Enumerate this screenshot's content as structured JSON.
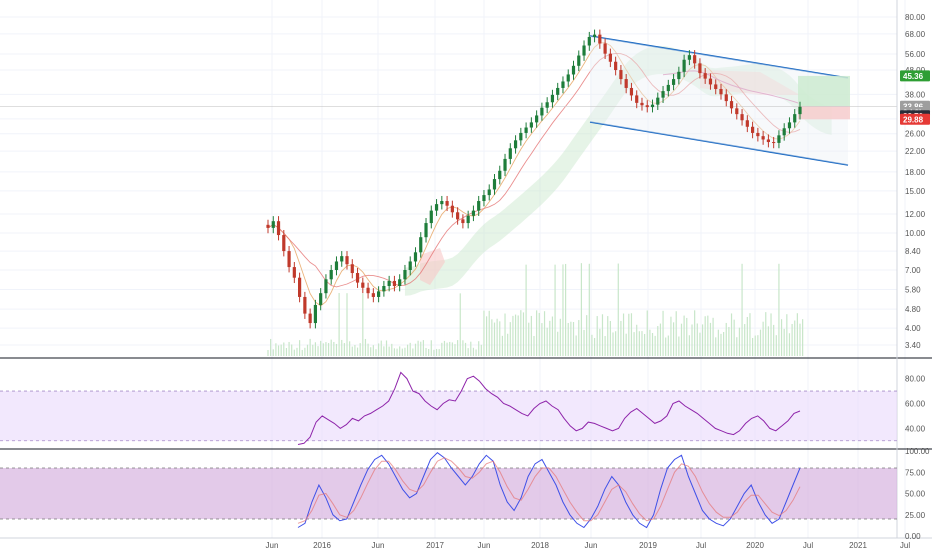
{
  "colors": {
    "up": "#26a69a",
    "down": "#ef5350",
    "candle_up": "#1e7d3a",
    "candle_down": "#c0392b",
    "channel": "#1565c0",
    "rsi_line": "#8e24aa",
    "rsi_band": "#e9d8fb",
    "stoch_k": "#3f51e8",
    "stoch_d": "#e57373",
    "stoch_band": "#d7b4e0",
    "volume": "#c8e6c9",
    "grid": "#f0f3fa",
    "sma_orange": "#e6a15c",
    "sma_red": "#e57373",
    "sma_pink": "#d16ba5",
    "cloud_green": "#c8e6c9",
    "cloud_red": "#f8c8c8",
    "badge_green": "#2e9e34",
    "badge_gray": "#9e9e9e",
    "badge_dark": "#2a2e39",
    "badge_red": "#e53935"
  },
  "price_axis": {
    "ticks": [
      "80.00",
      "68.00",
      "56.00",
      "48.00",
      "38.00",
      "30.00",
      "26.00",
      "22.00",
      "18.00",
      "15.00",
      "12.00",
      "10.00",
      "8.40",
      "7.00",
      "5.80",
      "4.80",
      "4.00",
      "3.40"
    ],
    "badges": [
      {
        "label": "45.36",
        "value": 45.36,
        "color": "badge_green"
      },
      {
        "label": "33.86",
        "value": 33.86,
        "color": "badge_gray"
      },
      {
        "label": "3d 8h",
        "value": 31.9,
        "color": "badge_gray"
      },
      {
        "label": "33.70",
        "value": 30.9,
        "color": "badge_dark"
      },
      {
        "label": "29.88",
        "value": 29.88,
        "color": "badge_red"
      }
    ]
  },
  "rsi_axis": {
    "ticks": [
      "80.00",
      "60.00",
      "40.00"
    ]
  },
  "stoch_axis": {
    "ticks": [
      "100.00",
      "75.00",
      "50.00",
      "25.00",
      "0.00"
    ]
  },
  "time_axis": {
    "ticks": [
      "Jun",
      "2016",
      "Jun",
      "2017",
      "Jun",
      "2018",
      "Jun",
      "2019",
      "Jul",
      "2020",
      "Jul",
      "2021",
      "Jul"
    ]
  },
  "chart_data": [
    {
      "type": "candlestick",
      "scale": "log",
      "x_range": [
        "2015-06",
        "2021-07"
      ],
      "ylim": [
        3.4,
        80
      ],
      "series": [
        {
          "values": [
            10.5,
            11.2,
            9.8,
            8.4,
            7.2,
            6.5,
            5.4,
            4.6,
            4.2,
            5.0,
            5.6,
            6.4,
            7.0,
            7.6,
            8.0,
            7.4,
            6.8,
            6.2,
            5.9,
            5.6,
            5.4,
            5.7,
            6.0,
            6.3,
            6.0,
            6.4,
            7.0,
            7.6,
            8.3,
            9.6,
            11.0,
            12.4,
            13.2,
            13.6,
            13.0,
            12.2,
            11.4,
            11.0,
            11.8,
            12.4,
            13.6,
            14.4,
            15.2,
            16.8,
            18.2,
            20.4,
            22.6,
            24.4,
            26.2,
            27.6,
            29.0,
            31.0,
            33.4,
            35.2,
            37.8,
            40.4,
            43.0,
            46.0,
            50.0,
            55.2,
            60.8,
            66.0,
            67.5,
            62.0,
            56.2,
            52.0,
            48.0,
            44.0,
            40.4,
            37.6,
            35.0,
            34.2,
            33.6,
            34.4,
            36.8,
            39.2,
            41.6,
            44.0,
            47.2,
            53.0,
            55.4,
            51.2,
            46.6,
            44.2,
            41.8,
            40.0,
            38.0,
            35.6,
            33.2,
            31.4,
            29.6,
            27.8,
            26.2,
            25.4,
            24.6,
            24.0,
            23.8,
            25.6,
            27.4,
            29.0,
            31.4,
            33.7
          ]
        }
      ],
      "channel": {
        "upper": [
          [
            "2018-06",
            66.0
          ],
          [
            "2020-12",
            48.0
          ]
        ],
        "lower": [
          [
            "2018-06",
            29.5
          ],
          [
            "2020-12",
            20.0
          ]
        ]
      },
      "trade_box": {
        "entry": 33.86,
        "target": 45.36,
        "stop": 29.88
      }
    },
    {
      "type": "line",
      "name": "",
      "ylim": [
        25,
        95
      ],
      "band": [
        30,
        70
      ],
      "values": [
        27,
        28,
        33,
        45,
        50,
        47,
        44,
        40,
        43,
        48,
        46,
        50,
        52,
        55,
        58,
        62,
        72,
        85,
        80,
        70,
        68,
        62,
        58,
        55,
        60,
        63,
        62,
        70,
        80,
        82,
        78,
        72,
        68,
        65,
        60,
        58,
        55,
        52,
        50,
        56,
        60,
        62,
        58,
        55,
        48,
        42,
        38,
        40,
        45,
        44,
        42,
        40,
        38,
        40,
        48,
        53,
        56,
        52,
        48,
        44,
        46,
        50,
        60,
        62,
        58,
        55,
        52,
        48,
        44,
        40,
        38,
        36,
        35,
        38,
        44,
        48,
        50,
        46,
        40,
        38,
        42,
        46,
        52,
        54
      ]
    },
    {
      "type": "line",
      "name": "",
      "ylim": [
        0,
        100
      ],
      "band": [
        20,
        80
      ],
      "series": [
        {
          "values": [
            10,
            15,
            40,
            60,
            45,
            25,
            18,
            20,
            40,
            60,
            78,
            90,
            95,
            85,
            70,
            55,
            45,
            50,
            70,
            90,
            98,
            92,
            80,
            70,
            60,
            70,
            85,
            95,
            88,
            60,
            40,
            30,
            45,
            70,
            85,
            90,
            75,
            60,
            40,
            25,
            15,
            10,
            20,
            35,
            55,
            70,
            60,
            40,
            25,
            15,
            10,
            25,
            55,
            80,
            90,
            95,
            70,
            50,
            30,
            20,
            15,
            12,
            20,
            35,
            50,
            60,
            40,
            25,
            15,
            20,
            40,
            60,
            80
          ]
        },
        {
          "values": [
            15,
            18,
            30,
            48,
            50,
            38,
            25,
            22,
            30,
            45,
            62,
            78,
            88,
            88,
            78,
            65,
            55,
            52,
            60,
            75,
            88,
            92,
            88,
            80,
            70,
            68,
            75,
            85,
            88,
            75,
            58,
            45,
            42,
            55,
            70,
            80,
            80,
            70,
            55,
            40,
            28,
            18,
            18,
            25,
            40,
            55,
            60,
            52,
            38,
            26,
            18,
            20,
            35,
            55,
            75,
            85,
            82,
            70,
            52,
            38,
            28,
            22,
            22,
            28,
            40,
            48,
            48,
            38,
            28,
            24,
            30,
            42,
            58
          ]
        }
      ]
    }
  ]
}
